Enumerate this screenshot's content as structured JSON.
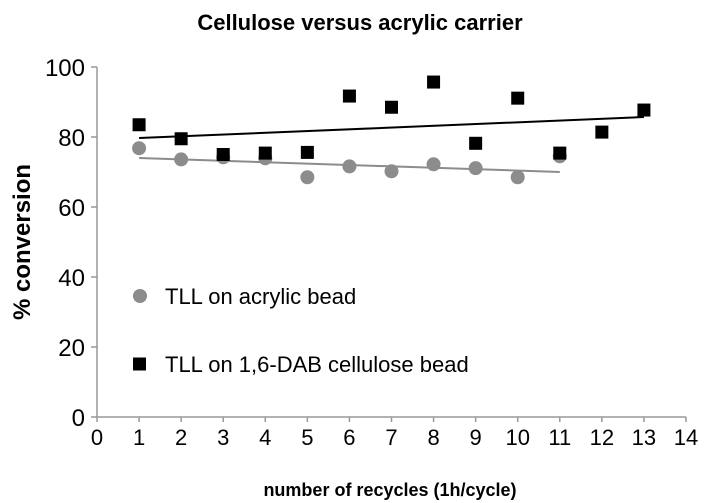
{
  "chart_data": {
    "type": "scatter",
    "title": "Cellulose versus acrylic carrier",
    "xlabel": "number of recycles (1h/cycle)",
    "ylabel": "% conversion",
    "xlim": [
      0,
      14
    ],
    "ylim": [
      0,
      100
    ],
    "xticks": [
      0,
      1,
      2,
      3,
      4,
      5,
      6,
      7,
      8,
      9,
      10,
      11,
      12,
      13,
      14
    ],
    "yticks": [
      0,
      20,
      40,
      60,
      80,
      100
    ],
    "grid": false,
    "legend_placement": "center-left",
    "series": [
      {
        "name": "TLL on acrylic bead",
        "marker": "circle",
        "color": "#8c8c8c",
        "x": [
          1,
          2,
          3,
          4,
          5,
          6,
          7,
          8,
          9,
          10,
          11
        ],
        "y": [
          76.8,
          73.6,
          74.2,
          73.9,
          68.5,
          71.6,
          70.2,
          72.2,
          71.1,
          68.5,
          74.5
        ],
        "trendline": {
          "x": [
            1,
            11
          ],
          "y": [
            74.0,
            70.0
          ]
        }
      },
      {
        "name": "TLL on 1,6-DAB cellulose bead",
        "marker": "square",
        "color": "#000000",
        "x": [
          1,
          2,
          3,
          4,
          5,
          6,
          7,
          8,
          9,
          10,
          11,
          12,
          13
        ],
        "y": [
          83.5,
          79.5,
          75,
          75.4,
          75.6,
          91.7,
          88.5,
          95.7,
          78.2,
          91.1,
          75.4,
          81.4,
          87.7
        ],
        "trendline": {
          "x": [
            1,
            13
          ],
          "y": [
            79.7,
            85.7
          ]
        }
      }
    ]
  }
}
